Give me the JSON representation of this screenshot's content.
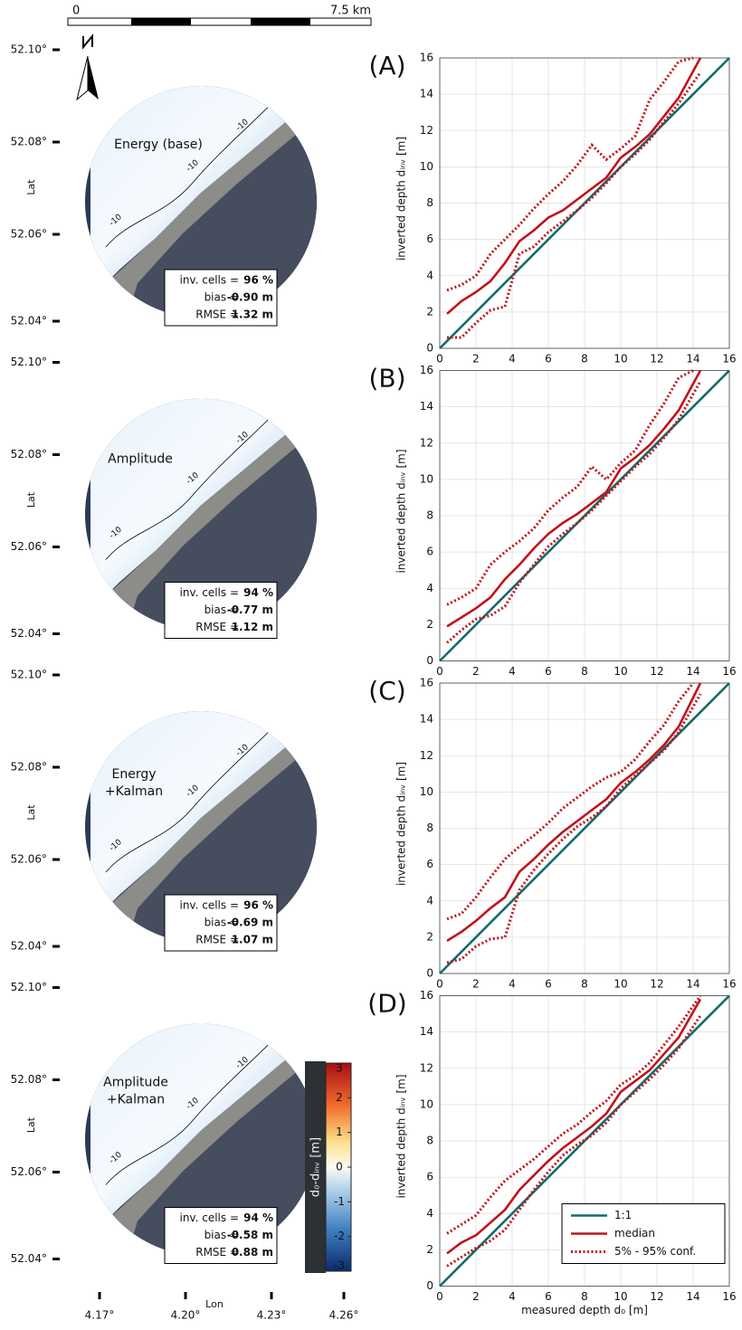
{
  "maps_common": {
    "scale_bar": [
      "0",
      "7.5 km"
    ],
    "lat_label": "Lat",
    "lon_label": "Lon",
    "lat_ticks": [
      "52.10°",
      "52.08°",
      "52.06°",
      "52.04°"
    ],
    "lon_ticks": [
      "4.17°",
      "4.20°",
      "4.23°",
      "4.26°"
    ],
    "contour_label": "-10",
    "stat_labels": [
      "inv. cells =",
      "bias =",
      "RMSE ="
    ],
    "colorbar": {
      "label": "d₀-dᵢₙᵥ [m]",
      "lim": [
        -3,
        3
      ],
      "ticks": [
        3,
        2,
        1,
        0,
        -1,
        -2,
        -3
      ]
    }
  },
  "maps": [
    {
      "title": [
        "Energy (base)"
      ],
      "stats": [
        "96 %",
        "-0.90 m",
        "1.32 m"
      ]
    },
    {
      "title": [
        "Amplitude"
      ],
      "stats": [
        "94 %",
        "-0.77 m",
        "1.12 m"
      ]
    },
    {
      "title": [
        "Energy",
        "+Kalman"
      ],
      "stats": [
        "96 %",
        "-0.69 m",
        "1.07 m"
      ]
    },
    {
      "title": [
        "Amplitude",
        "+Kalman"
      ],
      "stats": [
        "94 %",
        "-0.58 m",
        "0.88 m"
      ]
    }
  ],
  "chart_data": [
    {
      "type": "line",
      "panel_label": "(A)",
      "ylabel": "inverted depth dᵢₙᵥ [m]",
      "xlim": [
        0,
        16
      ],
      "ylim": [
        0,
        16
      ],
      "xticks": [
        0,
        2,
        4,
        6,
        8,
        10,
        12,
        14,
        16
      ],
      "yticks": [
        0,
        2,
        4,
        6,
        8,
        10,
        12,
        14,
        16
      ],
      "grid": true,
      "series": [
        {
          "color": "#126b6b",
          "style": "solid",
          "x": [
            0,
            16
          ],
          "values": [
            0,
            16
          ]
        },
        {
          "color": "#c0141a",
          "style": "solid",
          "x": [
            0.4,
            1.2,
            2,
            2.8,
            3.6,
            4.4,
            5.2,
            6,
            6.8,
            7.6,
            8.4,
            9.2,
            10,
            10.8,
            11.6,
            12.4,
            13.2,
            14.4
          ],
          "values": [
            1.9,
            2.6,
            3.1,
            3.7,
            4.7,
            5.9,
            6.5,
            7.2,
            7.6,
            8.2,
            8.8,
            9.4,
            10.5,
            11.1,
            11.8,
            12.8,
            13.8,
            16
          ]
        },
        {
          "color": "#c0141a",
          "style": "dotted",
          "x": [
            0.4,
            1.2,
            2,
            2.8,
            3.6,
            4.4,
            5.2,
            6,
            6.8,
            7.6,
            8.4,
            9.2,
            10,
            10.8,
            11.6,
            12.4,
            13.2,
            14.4
          ],
          "values": [
            0.6,
            0.6,
            1.4,
            2.1,
            2.3,
            5.2,
            5.6,
            6.4,
            7.0,
            7.6,
            8.3,
            9.1,
            10.0,
            10.7,
            11.5,
            12.5,
            13.5,
            15.2
          ]
        },
        {
          "color": "#c0141a",
          "style": "dotted",
          "x": [
            0.4,
            1.2,
            2,
            2.8,
            3.6,
            4.4,
            5.2,
            6,
            6.8,
            7.6,
            8.4,
            9.2,
            10,
            10.8,
            11.6,
            12.4,
            13.2,
            14.0
          ],
          "values": [
            3.2,
            3.5,
            4.0,
            5.2,
            6.0,
            6.8,
            7.7,
            8.5,
            9.2,
            10.1,
            11.2,
            10.4,
            11.0,
            11.7,
            13.7,
            14.7,
            15.8,
            16
          ]
        }
      ]
    },
    {
      "type": "line",
      "panel_label": "(B)",
      "ylabel": "inverted depth dᵢₙᵥ [m]",
      "xlim": [
        0,
        16
      ],
      "ylim": [
        0,
        16
      ],
      "xticks": [
        0,
        2,
        4,
        6,
        8,
        10,
        12,
        14,
        16
      ],
      "yticks": [
        0,
        2,
        4,
        6,
        8,
        10,
        12,
        14,
        16
      ],
      "grid": true,
      "series": [
        {
          "color": "#126b6b",
          "style": "solid",
          "x": [
            0,
            16
          ],
          "values": [
            0,
            16
          ]
        },
        {
          "color": "#c0141a",
          "style": "solid",
          "x": [
            0.4,
            1.2,
            2,
            2.8,
            3.6,
            4.4,
            5.2,
            6,
            6.8,
            7.6,
            8.4,
            9.2,
            10,
            10.8,
            11.6,
            12.4,
            13.2,
            14.4
          ],
          "values": [
            1.9,
            2.4,
            2.9,
            3.5,
            4.5,
            5.3,
            6.2,
            7.0,
            7.6,
            8.1,
            8.7,
            9.3,
            10.6,
            11.2,
            11.9,
            12.8,
            13.8,
            16
          ]
        },
        {
          "color": "#c0141a",
          "style": "dotted",
          "x": [
            0.4,
            1.2,
            2,
            2.8,
            3.6,
            4.4,
            5.2,
            6,
            6.8,
            7.6,
            8.4,
            9.2,
            10,
            10.8,
            11.6,
            12.4,
            13.2,
            14.4
          ],
          "values": [
            1.0,
            1.7,
            2.3,
            2.5,
            3.0,
            4.3,
            5.3,
            6.3,
            7.0,
            7.6,
            8.3,
            9.1,
            9.9,
            10.7,
            11.4,
            12.3,
            13.3,
            15.4
          ]
        },
        {
          "color": "#c0141a",
          "style": "dotted",
          "x": [
            0.4,
            1.2,
            2,
            2.8,
            3.6,
            4.4,
            5.2,
            6,
            6.8,
            7.6,
            8.4,
            9.2,
            10,
            10.8,
            11.6,
            12.4,
            13.2,
            14.0
          ],
          "values": [
            3.1,
            3.5,
            4.0,
            5.3,
            6.0,
            6.6,
            7.3,
            8.3,
            9.0,
            9.6,
            10.7,
            10.0,
            10.9,
            11.6,
            13.0,
            14.2,
            15.6,
            16
          ]
        }
      ]
    },
    {
      "type": "line",
      "panel_label": "(C)",
      "ylabel": "inverted depth dᵢₙᵥ [m]",
      "xlim": [
        0,
        16
      ],
      "ylim": [
        0,
        16
      ],
      "xticks": [
        0,
        2,
        4,
        6,
        8,
        10,
        12,
        14,
        16
      ],
      "yticks": [
        0,
        2,
        4,
        6,
        8,
        10,
        12,
        14,
        16
      ],
      "grid": true,
      "series": [
        {
          "color": "#126b6b",
          "style": "solid",
          "x": [
            0,
            16
          ],
          "values": [
            0,
            16
          ]
        },
        {
          "color": "#c0141a",
          "style": "solid",
          "x": [
            0.4,
            1.2,
            2,
            2.8,
            3.6,
            4.4,
            5.2,
            6,
            6.8,
            7.6,
            8.4,
            9.2,
            10,
            10.8,
            11.6,
            12.4,
            13.2,
            14.4
          ],
          "values": [
            1.8,
            2.3,
            2.9,
            3.6,
            4.2,
            5.6,
            6.3,
            7.1,
            7.8,
            8.4,
            9.0,
            9.6,
            10.5,
            11.1,
            11.8,
            12.6,
            13.6,
            16
          ]
        },
        {
          "color": "#c0141a",
          "style": "dotted",
          "x": [
            0.4,
            1.2,
            2,
            2.8,
            3.6,
            4.4,
            5.2,
            6,
            6.8,
            7.6,
            8.4,
            9.2,
            10,
            10.8,
            11.6,
            12.4,
            13.2,
            14.4
          ],
          "values": [
            0.6,
            0.8,
            1.5,
            1.9,
            2.0,
            4.6,
            5.7,
            6.6,
            7.4,
            8.1,
            8.6,
            9.2,
            10.2,
            10.9,
            11.6,
            12.3,
            13.3,
            15.4
          ]
        },
        {
          "color": "#c0141a",
          "style": "dotted",
          "x": [
            0.4,
            1.2,
            2,
            2.8,
            3.6,
            4.4,
            5.2,
            6,
            6.8,
            7.6,
            8.4,
            9.2,
            10,
            10.8,
            11.6,
            12.4,
            13.2,
            14.0
          ],
          "values": [
            3.0,
            3.3,
            4.2,
            5.3,
            6.3,
            7.0,
            7.6,
            8.3,
            9.1,
            9.7,
            10.3,
            10.8,
            11.1,
            11.8,
            12.8,
            13.7,
            15.0,
            16
          ]
        }
      ]
    },
    {
      "type": "line",
      "panel_label": "(D)",
      "ylabel": "inverted depth dᵢₙᵥ [m]",
      "xlabel": "measured depth d₀ [m]",
      "xlim": [
        0,
        16
      ],
      "ylim": [
        0,
        16
      ],
      "xticks": [
        0,
        2,
        4,
        6,
        8,
        10,
        12,
        14,
        16
      ],
      "yticks": [
        0,
        2,
        4,
        6,
        8,
        10,
        12,
        14,
        16
      ],
      "grid": true,
      "legend": "lower right",
      "series": [
        {
          "name": "1:1",
          "color": "#126b6b",
          "style": "solid",
          "x": [
            0,
            16
          ],
          "values": [
            0,
            16
          ]
        },
        {
          "name": "median",
          "color": "#c0141a",
          "style": "solid",
          "x": [
            0.4,
            1.2,
            2,
            2.8,
            3.6,
            4.4,
            5.2,
            6,
            6.8,
            7.6,
            8.4,
            9.2,
            10,
            10.8,
            11.6,
            12.4,
            13.2,
            14.4
          ],
          "values": [
            1.8,
            2.4,
            2.8,
            3.5,
            4.2,
            5.3,
            6.1,
            6.9,
            7.6,
            8.2,
            8.8,
            9.5,
            10.7,
            11.3,
            11.9,
            12.8,
            13.7,
            15.8
          ]
        },
        {
          "name": "5% - 95% conf.",
          "color": "#c0141a",
          "style": "dotted",
          "x": [
            0.4,
            1.2,
            2,
            2.8,
            3.6,
            4.4,
            5.2,
            6,
            6.8,
            7.6,
            8.4,
            9.2,
            10,
            10.8,
            11.6,
            12.4,
            13.2,
            14.4
          ],
          "values": [
            1.1,
            1.6,
            2.1,
            2.5,
            3.1,
            4.2,
            5.3,
            6.3,
            7.2,
            7.8,
            8.3,
            9.0,
            10.0,
            10.7,
            11.4,
            12.2,
            13.1,
            14.9
          ]
        },
        {
          "color": "#c0141a",
          "style": "dotted",
          "x": [
            0.4,
            1.2,
            2,
            2.8,
            3.6,
            4.4,
            5.2,
            6,
            6.8,
            7.6,
            8.4,
            9.2,
            10,
            10.8,
            11.6,
            12.4,
            13.2,
            14.4
          ],
          "values": [
            2.9,
            3.4,
            3.9,
            4.9,
            5.8,
            6.4,
            7.0,
            7.7,
            8.4,
            8.9,
            9.6,
            10.2,
            11.1,
            11.6,
            12.3,
            13.3,
            14.3,
            16
          ]
        }
      ]
    }
  ]
}
